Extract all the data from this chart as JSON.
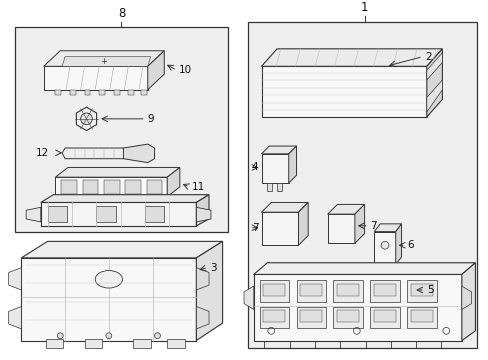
{
  "bg_color": "#ffffff",
  "lc": "#333333",
  "fill_light": "#f5f5f5",
  "fill_mid": "#e8e8e8",
  "fill_dark": "#d8d8d8",
  "fill_box": "#eeeeee",
  "fig_width": 4.89,
  "fig_height": 3.6,
  "dpi": 100
}
